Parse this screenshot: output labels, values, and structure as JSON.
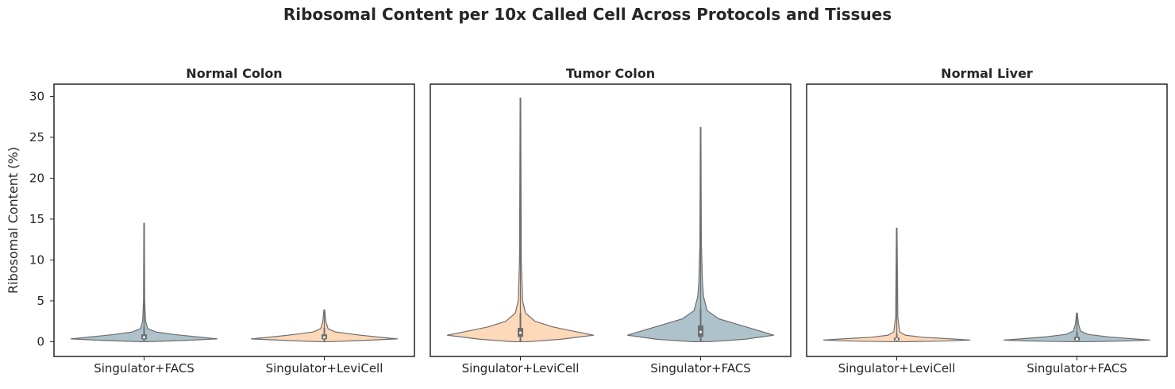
{
  "figure": {
    "title": "Ribosomal Content per 10x Called Cell Across Protocols and Tissues"
  },
  "colors": {
    "facs": "#aec2cb",
    "levicell": "#fdd8b9",
    "outline": "#6e6e6e",
    "box": "#6e6e6e",
    "median": "#eeeeee",
    "frame": "#262626"
  },
  "chart_data": [
    {
      "type": "violin",
      "title": "Normal Colon",
      "xlabel": "",
      "ylabel": "Ribosomal Content (%)",
      "ylim": [
        -1.8,
        31.5
      ],
      "yticks": [
        0,
        5,
        10,
        15,
        20,
        25,
        30
      ],
      "categories": [
        "Singulator+FACS",
        "Singulator+LeviCell"
      ],
      "series": [
        {
          "category": "Singulator+FACS",
          "color": "#aec2cb",
          "min": 0.0,
          "q1": 0.3,
          "median": 0.55,
          "q3": 0.9,
          "max": 14.5,
          "whisker_upper": 1.8,
          "density": [
            [
              0.0,
              0.05
            ],
            [
              0.15,
              0.55
            ],
            [
              0.35,
              1.0
            ],
            [
              0.6,
              0.72
            ],
            [
              0.9,
              0.4
            ],
            [
              1.2,
              0.16
            ],
            [
              1.6,
              0.05
            ],
            [
              2.5,
              0.02
            ],
            [
              5,
              0.008
            ],
            [
              14.5,
              0.004
            ]
          ]
        },
        {
          "category": "Singulator+LeviCell",
          "color": "#fdd8b9",
          "min": 0.0,
          "q1": 0.3,
          "median": 0.55,
          "q3": 0.9,
          "max": 3.9,
          "whisker_upper": 1.7,
          "density": [
            [
              0.0,
              0.05
            ],
            [
              0.15,
              0.52
            ],
            [
              0.35,
              1.0
            ],
            [
              0.6,
              0.7
            ],
            [
              0.9,
              0.4
            ],
            [
              1.2,
              0.15
            ],
            [
              1.6,
              0.05
            ],
            [
              2.5,
              0.02
            ],
            [
              3.9,
              0.006
            ]
          ]
        }
      ]
    },
    {
      "type": "violin",
      "title": "Tumor Colon",
      "xlabel": "",
      "ylabel": "",
      "ylim": [
        -1.8,
        31.5
      ],
      "yticks": [
        0,
        5,
        10,
        15,
        20,
        25,
        30
      ],
      "categories": [
        "Singulator+LeviCell",
        "Singulator+FACS"
      ],
      "series": [
        {
          "category": "Singulator+LeviCell",
          "color": "#fdd8b9",
          "min": 0.0,
          "q1": 0.6,
          "median": 1.1,
          "q3": 1.7,
          "max": 29.8,
          "whisker_upper": 3.5,
          "density": [
            [
              0.0,
              0.1
            ],
            [
              0.3,
              0.55
            ],
            [
              0.8,
              1.0
            ],
            [
              1.3,
              0.72
            ],
            [
              1.8,
              0.45
            ],
            [
              2.5,
              0.2
            ],
            [
              3.5,
              0.07
            ],
            [
              5,
              0.03
            ],
            [
              10,
              0.012
            ],
            [
              29.8,
              0.004
            ]
          ]
        },
        {
          "category": "Singulator+FACS",
          "color": "#aec2cb",
          "min": 0.0,
          "q1": 0.6,
          "median": 1.2,
          "q3": 2.0,
          "max": 26.2,
          "whisker_upper": 4.0,
          "density": [
            [
              0.0,
              0.12
            ],
            [
              0.3,
              0.6
            ],
            [
              0.8,
              1.0
            ],
            [
              1.4,
              0.78
            ],
            [
              2.0,
              0.55
            ],
            [
              2.8,
              0.25
            ],
            [
              3.8,
              0.09
            ],
            [
              5.5,
              0.04
            ],
            [
              7.2,
              0.025
            ],
            [
              12,
              0.01
            ],
            [
              26.2,
              0.004
            ]
          ]
        }
      ]
    },
    {
      "type": "violin",
      "title": "Normal Liver",
      "xlabel": "",
      "ylabel": "",
      "ylim": [
        -1.8,
        31.5
      ],
      "yticks": [
        0,
        5,
        10,
        15,
        20,
        25,
        30
      ],
      "categories": [
        "Singulator+LeviCell",
        "Singulator+FACS"
      ],
      "series": [
        {
          "category": "Singulator+LeviCell",
          "color": "#fdd8b9",
          "min": 0.0,
          "q1": 0.15,
          "median": 0.3,
          "q3": 0.5,
          "max": 13.9,
          "whisker_upper": 1.0,
          "density": [
            [
              0.0,
              0.1
            ],
            [
              0.1,
              0.7
            ],
            [
              0.2,
              1.0
            ],
            [
              0.35,
              0.75
            ],
            [
              0.55,
              0.35
            ],
            [
              0.8,
              0.12
            ],
            [
              1.2,
              0.04
            ],
            [
              3,
              0.015
            ],
            [
              13.9,
              0.004
            ]
          ]
        },
        {
          "category": "Singulator+FACS",
          "color": "#aec2cb",
          "min": 0.0,
          "q1": 0.15,
          "median": 0.3,
          "q3": 0.6,
          "max": 3.5,
          "whisker_upper": 1.2,
          "density": [
            [
              0.0,
              0.1
            ],
            [
              0.1,
              0.72
            ],
            [
              0.2,
              1.0
            ],
            [
              0.35,
              0.78
            ],
            [
              0.6,
              0.42
            ],
            [
              0.9,
              0.15
            ],
            [
              1.3,
              0.05
            ],
            [
              2.2,
              0.02
            ],
            [
              3.5,
              0.006
            ]
          ]
        }
      ]
    }
  ]
}
